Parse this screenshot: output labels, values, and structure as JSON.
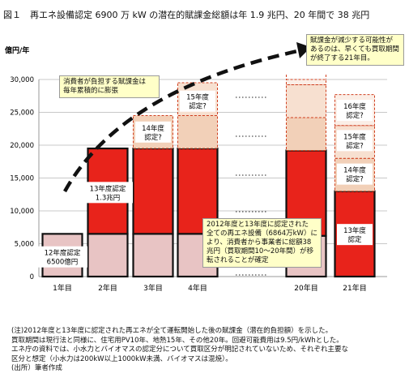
{
  "figure": {
    "title": "図１　再エネ設備認定 6900 万 kW の潜在的賦課金総額は年 1.9 兆円、20 年間で 38 兆円"
  },
  "chart_data": {
    "type": "bar",
    "ylabel": "億円/年",
    "ylim": [
      0,
      30000
    ],
    "yticks": [
      0,
      5000,
      10000,
      15000,
      20000,
      25000,
      30000
    ],
    "categories": [
      "1年目",
      "2年目",
      "3年目",
      "4年目",
      "",
      "20年目",
      "21年目"
    ],
    "series": [
      {
        "name": "12年度認定",
        "values": [
          6500,
          6500,
          6500,
          6500,
          null,
          6200,
          0
        ]
      },
      {
        "name": "13年度認定",
        "values": [
          0,
          13000,
          13000,
          13000,
          null,
          13000,
          13000
        ]
      },
      {
        "name": "14年度認定?",
        "values": [
          0,
          0,
          5000,
          5000,
          null,
          5000,
          5000
        ]
      },
      {
        "name": "15年度認定?",
        "values": [
          0,
          0,
          0,
          5000,
          null,
          5000,
          5000
        ]
      },
      {
        "name": "16年度認定?",
        "values": [
          0,
          0,
          0,
          0,
          null,
          1000,
          4700
        ]
      }
    ],
    "bar_labels": [
      {
        "text": "12年度認定\n6500億円",
        "category": "1年目",
        "y": 3000
      },
      {
        "text": "13年度認定\n1.3兆円",
        "category": "2年目",
        "y": 12800
      },
      {
        "text": "14年度\n認定?",
        "category": "3年目",
        "y": 22000
      },
      {
        "text": "15年度\n認定?",
        "category": "4年目",
        "y": 26700
      },
      {
        "text": "16年度\n認定?",
        "category": "21年目",
        "y": 25300
      },
      {
        "text": "15年度\n認定?",
        "category": "21年目",
        "y": 20700
      },
      {
        "text": "14年度\n認定?",
        "category": "21年目",
        "y": 15600
      },
      {
        "text": "13年度\n認定",
        "category": "21年目",
        "y": 6400
      }
    ]
  },
  "callouts": {
    "consumer": "消費者が負担する賦課金は\n毎年累積的に膨張",
    "reduction": "賦課金が減少する可能性が\nあるのは、早くても買取期間\nが終了する21年目。",
    "transfer": "2012年度と13年度に認定された\n全ての再エネ設備（6864万kW）に\nより、消費者から事業者に総額38\n兆円（買取期間10～20年間）が移\n転されることが確定"
  },
  "colors": {
    "fy12": "#e8c4c4",
    "fy13": "#e8231b",
    "fy14": "#f2d0b8",
    "fy15": "#f7e0d0",
    "fy16": "#fbeee6",
    "callout_bg": "#ffffc8"
  },
  "notes": [
    "(注)2012年度と13年度に認定された再エネが全て運転開始した後の賦課金（潜在的負担額）を示した。",
    "買取期間は現行法と同様に、住宅用PV10年、地熱15年、その他20年。回避可能費用は9.5円/kWhとした。",
    "エネ庁の資料では、小水力とバイオマスの認定分について買取区分が明記されていないため、それぞれ主要な",
    "区分と想定（小水力は200kW以上1000kW未満、バイオマスは混焼）。",
    "(出所）筆者作成"
  ]
}
